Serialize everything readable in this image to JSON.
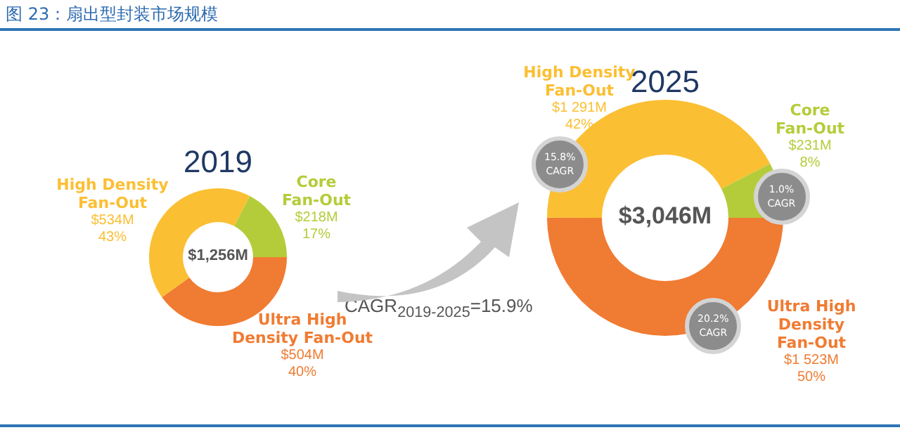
{
  "chart_data": [
    {
      "type": "donut",
      "title": "2019",
      "categories": [
        "Ultra High Density Fan-Out",
        "High Density Fan-Out",
        "Core Fan-Out"
      ],
      "values": [
        504,
        534,
        218
      ],
      "colors": [
        "#f07b32",
        "#fbbf33",
        "#b5cc3a"
      ],
      "value_labels": [
        "$504M",
        "$534M",
        "$218M"
      ],
      "annotations": [
        "图 23：扇出型封装市场规模",
        "$1,256M",
        "CAGR$_{2019-2025}$=15.9%",
        "40%",
        "43%",
        "17%"
      ]
    },
    {
      "type": "donut",
      "title": "2025",
      "categories": [
        "Ultra High Density Fan-Out",
        "High Density Fan-Out",
        "Core Fan-Out"
      ],
      "values": [
        1523,
        1291,
        231
      ],
      "colors": [
        "#f07b32",
        "#fbbf33",
        "#b5cc3a"
      ],
      "value_labels": [
        "$1 523M",
        "$1 291M",
        "$231M"
      ],
      "annotations": [
        "$3,046M",
        "20.2% CAGR",
        "15.8% CAGR",
        "1.0% CAGR",
        "50%",
        "42%",
        "8%"
      ]
    }
  ]
}
